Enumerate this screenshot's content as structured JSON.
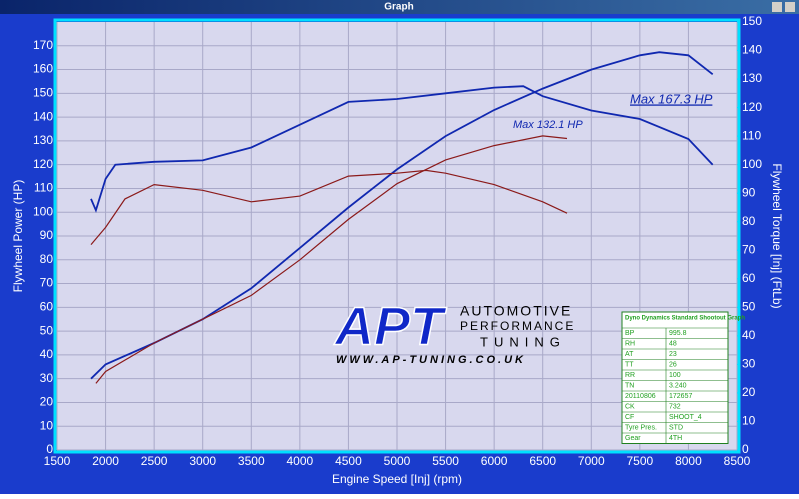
{
  "window_title": "Graph",
  "chart_data": {
    "type": "line",
    "x_label": "Engine Speed [Inj] (rpm)",
    "y_label": "Flywheel Power (HP)",
    "y2_label": "Flywheel Torque [Inj] (FtLb)",
    "annotations": [
      "Max 167.3 HP",
      "Max 132.1 HP"
    ],
    "xlim": [
      1500,
      8500
    ],
    "xticks": [
      1500,
      2000,
      2500,
      3000,
      3500,
      4000,
      4500,
      5000,
      5500,
      6000,
      6500,
      7000,
      7500,
      8000,
      8500
    ],
    "ylim": [
      0,
      180
    ],
    "yticks": [
      0,
      10,
      20,
      30,
      40,
      50,
      60,
      70,
      80,
      90,
      100,
      110,
      120,
      130,
      140,
      150,
      160,
      170
    ],
    "y2lim": [
      0,
      150
    ],
    "y2ticks": [
      0,
      10,
      20,
      30,
      40,
      50,
      60,
      70,
      80,
      90,
      100,
      110,
      120,
      130,
      140,
      150
    ],
    "grid": true,
    "series": [
      {
        "color": "#1028b0",
        "axis": "y",
        "x": [
          1850,
          2000,
          2500,
          3000,
          3500,
          4000,
          4500,
          5000,
          5500,
          6000,
          6500,
          7000,
          7500,
          7700,
          8000,
          8250
        ],
        "values": [
          30,
          36,
          45,
          55,
          68,
          85,
          102,
          118,
          132,
          143,
          152,
          160,
          166,
          167.3,
          166,
          158
        ]
      },
      {
        "color": "#1028b0",
        "axis": "y2",
        "x": [
          1850,
          1900,
          2000,
          2100,
          2500,
          3000,
          3500,
          4000,
          4500,
          5000,
          5500,
          6000,
          6300,
          6500,
          7000,
          7500,
          8000,
          8250
        ],
        "values": [
          88,
          84,
          95,
          100,
          101,
          101.5,
          106,
          114,
          122,
          123,
          125,
          127,
          127.5,
          124,
          119,
          116,
          109,
          100
        ]
      },
      {
        "color": "#8b1a1a",
        "axis": "y",
        "x": [
          1900,
          2000,
          2500,
          3000,
          3500,
          4000,
          4500,
          5000,
          5500,
          6000,
          6500,
          6750
        ],
        "values": [
          28,
          33,
          45,
          55,
          65,
          80,
          97,
          112,
          122,
          128,
          132.1,
          131
        ]
      },
      {
        "color": "#8b1a1a",
        "axis": "y2",
        "x": [
          1850,
          2000,
          2200,
          2500,
          3000,
          3500,
          4000,
          4500,
          5000,
          5300,
          5500,
          6000,
          6500,
          6750
        ],
        "values": [
          72,
          78,
          88,
          93,
          91,
          87,
          89,
          96,
          97,
          98,
          97,
          93,
          87,
          83
        ]
      }
    ]
  },
  "logo": {
    "mark": "APT",
    "line1": "AUTOMOTIVE",
    "line2": "PERFORMANCE",
    "line3": "TUNING",
    "url": "WWW.AP-TUNING.CO.UK"
  },
  "info_table": {
    "title": "Dyno Dynamics Standard Shootout Graph",
    "rows": [
      [
        "BP",
        "995.8"
      ],
      [
        "RH",
        "48"
      ],
      [
        "AT",
        "23"
      ],
      [
        "TT",
        "26"
      ],
      [
        "RR",
        "100"
      ],
      [
        "TN",
        "3.240"
      ],
      [
        "20110806",
        "172657"
      ],
      [
        "CK",
        "732"
      ],
      [
        "CF",
        "SHOOT_4"
      ],
      [
        "Tyre Pres.",
        "STD"
      ],
      [
        "Gear",
        "4TH"
      ]
    ]
  }
}
